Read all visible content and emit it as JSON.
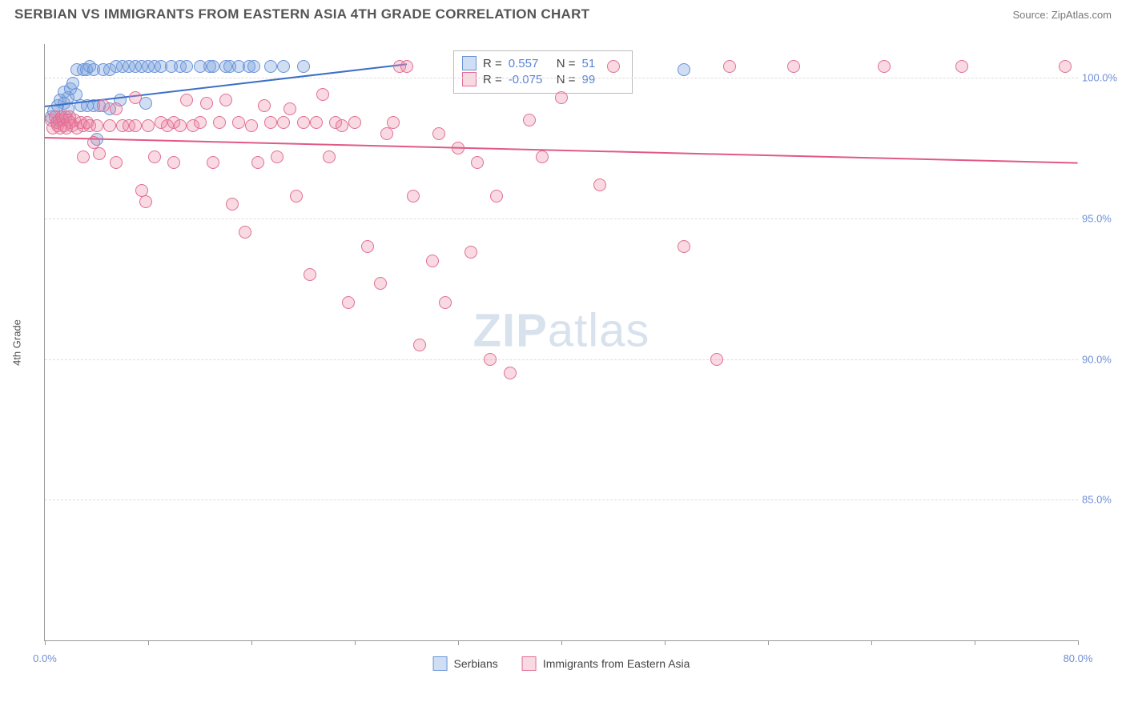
{
  "header": {
    "title": "SERBIAN VS IMMIGRANTS FROM EASTERN ASIA 4TH GRADE CORRELATION CHART",
    "source": "Source: ZipAtlas.com"
  },
  "chart": {
    "type": "scatter",
    "ylabel": "4th Grade",
    "watermark_bold": "ZIP",
    "watermark_light": "atlas",
    "xlim": [
      0,
      80
    ],
    "ylim": [
      80,
      101.2
    ],
    "xticks": [
      0,
      8,
      16,
      24,
      32,
      40,
      48,
      56,
      64,
      72,
      80
    ],
    "xtick_labels": {
      "0": "0.0%",
      "80": "80.0%"
    },
    "yticks": [
      85,
      90,
      95,
      100
    ],
    "ytick_labels": {
      "85": "85.0%",
      "90": "90.0%",
      "95": "95.0%",
      "100": "100.0%"
    },
    "background_color": "#ffffff",
    "grid_color": "#dddddd",
    "marker_radius": 7,
    "series": [
      {
        "name": "Serbians",
        "fill": "rgba(120,160,220,0.35)",
        "stroke": "#6a93d6",
        "r_label": "R =",
        "r_value": "0.557",
        "n_label": "N =",
        "n_value": "51",
        "trend": {
          "x1": 0,
          "y1": 99.0,
          "x2": 28,
          "y2": 100.5,
          "color": "#3d6fc7"
        },
        "points": [
          [
            0.5,
            98.6
          ],
          [
            0.7,
            98.8
          ],
          [
            0.9,
            98.4
          ],
          [
            1.0,
            99.0
          ],
          [
            1.2,
            99.2
          ],
          [
            1.3,
            98.6
          ],
          [
            1.5,
            99.1
          ],
          [
            1.5,
            99.5
          ],
          [
            1.8,
            99.3
          ],
          [
            1.8,
            98.9
          ],
          [
            2.0,
            99.6
          ],
          [
            2.2,
            99.8
          ],
          [
            2.4,
            99.4
          ],
          [
            2.5,
            100.3
          ],
          [
            2.8,
            99.0
          ],
          [
            3.0,
            100.3
          ],
          [
            3.2,
            100.3
          ],
          [
            3.3,
            99.0
          ],
          [
            3.5,
            100.4
          ],
          [
            3.8,
            99.0
          ],
          [
            3.8,
            100.3
          ],
          [
            4.0,
            97.8
          ],
          [
            4.2,
            99.0
          ],
          [
            4.5,
            100.3
          ],
          [
            5.0,
            100.3
          ],
          [
            5.0,
            98.9
          ],
          [
            5.5,
            100.4
          ],
          [
            5.8,
            99.2
          ],
          [
            6.0,
            100.4
          ],
          [
            6.5,
            100.4
          ],
          [
            7.0,
            100.4
          ],
          [
            7.5,
            100.4
          ],
          [
            7.8,
            99.1
          ],
          [
            8.0,
            100.4
          ],
          [
            8.5,
            100.4
          ],
          [
            9.0,
            100.4
          ],
          [
            9.8,
            100.4
          ],
          [
            10.5,
            100.4
          ],
          [
            11.0,
            100.4
          ],
          [
            12.0,
            100.4
          ],
          [
            12.8,
            100.4
          ],
          [
            13.0,
            100.4
          ],
          [
            14.0,
            100.4
          ],
          [
            14.3,
            100.4
          ],
          [
            15.0,
            100.4
          ],
          [
            15.8,
            100.4
          ],
          [
            16.2,
            100.4
          ],
          [
            17.5,
            100.4
          ],
          [
            18.5,
            100.4
          ],
          [
            20.0,
            100.4
          ],
          [
            49.5,
            100.3
          ]
        ]
      },
      {
        "name": "Immigrants from Eastern Asia",
        "fill": "rgba(235,130,160,0.30)",
        "stroke": "#e06f95",
        "r_label": "R =",
        "r_value": "-0.075",
        "n_label": "N =",
        "n_value": "99",
        "trend": {
          "x1": 0,
          "y1": 97.9,
          "x2": 80,
          "y2": 97.0,
          "color": "#e05a85"
        },
        "points": [
          [
            0.5,
            98.5
          ],
          [
            0.6,
            98.2
          ],
          [
            0.8,
            98.6
          ],
          [
            0.9,
            98.4
          ],
          [
            1.0,
            98.3
          ],
          [
            1.1,
            98.5
          ],
          [
            1.2,
            98.2
          ],
          [
            1.3,
            98.6
          ],
          [
            1.4,
            98.5
          ],
          [
            1.5,
            98.3
          ],
          [
            1.6,
            98.6
          ],
          [
            1.7,
            98.2
          ],
          [
            1.8,
            98.5
          ],
          [
            1.9,
            98.6
          ],
          [
            2.0,
            98.4
          ],
          [
            2.1,
            98.3
          ],
          [
            2.3,
            98.5
          ],
          [
            2.5,
            98.2
          ],
          [
            2.8,
            98.4
          ],
          [
            3.0,
            98.3
          ],
          [
            3.0,
            97.2
          ],
          [
            3.3,
            98.4
          ],
          [
            3.5,
            98.3
          ],
          [
            3.8,
            97.7
          ],
          [
            4.0,
            98.3
          ],
          [
            4.2,
            97.3
          ],
          [
            4.5,
            99.0
          ],
          [
            5.0,
            98.3
          ],
          [
            5.5,
            97.0
          ],
          [
            5.5,
            98.9
          ],
          [
            6.0,
            98.3
          ],
          [
            6.5,
            98.3
          ],
          [
            7.0,
            98.3
          ],
          [
            7.0,
            99.3
          ],
          [
            7.5,
            96.0
          ],
          [
            7.8,
            95.6
          ],
          [
            8.0,
            98.3
          ],
          [
            8.5,
            97.2
          ],
          [
            9.0,
            98.4
          ],
          [
            9.5,
            98.3
          ],
          [
            10.0,
            98.4
          ],
          [
            10.0,
            97.0
          ],
          [
            10.5,
            98.3
          ],
          [
            11.0,
            99.2
          ],
          [
            11.5,
            98.3
          ],
          [
            12.0,
            98.4
          ],
          [
            12.5,
            99.1
          ],
          [
            13.0,
            97.0
          ],
          [
            13.5,
            98.4
          ],
          [
            14.0,
            99.2
          ],
          [
            14.5,
            95.5
          ],
          [
            15.0,
            98.4
          ],
          [
            15.5,
            94.5
          ],
          [
            16.0,
            98.3
          ],
          [
            16.5,
            97.0
          ],
          [
            17.0,
            99.0
          ],
          [
            17.5,
            98.4
          ],
          [
            18.0,
            97.2
          ],
          [
            18.5,
            98.4
          ],
          [
            19.0,
            98.9
          ],
          [
            19.5,
            95.8
          ],
          [
            20.0,
            98.4
          ],
          [
            20.5,
            93.0
          ],
          [
            21.0,
            98.4
          ],
          [
            21.5,
            99.4
          ],
          [
            22.0,
            97.2
          ],
          [
            22.5,
            98.4
          ],
          [
            23.0,
            98.3
          ],
          [
            23.5,
            92.0
          ],
          [
            24.0,
            98.4
          ],
          [
            25.0,
            94.0
          ],
          [
            26.0,
            92.7
          ],
          [
            26.5,
            98.0
          ],
          [
            27.0,
            98.4
          ],
          [
            27.5,
            100.4
          ],
          [
            28.0,
            100.4
          ],
          [
            28.5,
            95.8
          ],
          [
            29.0,
            90.5
          ],
          [
            30.0,
            93.5
          ],
          [
            30.5,
            98.0
          ],
          [
            31.0,
            92.0
          ],
          [
            32.0,
            97.5
          ],
          [
            33.0,
            93.8
          ],
          [
            33.5,
            97.0
          ],
          [
            34.5,
            90.0
          ],
          [
            35.0,
            95.8
          ],
          [
            36.0,
            89.5
          ],
          [
            37.5,
            98.5
          ],
          [
            38.5,
            97.2
          ],
          [
            40.0,
            99.3
          ],
          [
            43.0,
            96.2
          ],
          [
            44.0,
            100.4
          ],
          [
            49.5,
            94.0
          ],
          [
            52.0,
            90.0
          ],
          [
            53.0,
            100.4
          ],
          [
            58.0,
            100.4
          ],
          [
            65.0,
            100.4
          ],
          [
            71.0,
            100.4
          ],
          [
            79.0,
            100.4
          ]
        ]
      }
    ]
  }
}
